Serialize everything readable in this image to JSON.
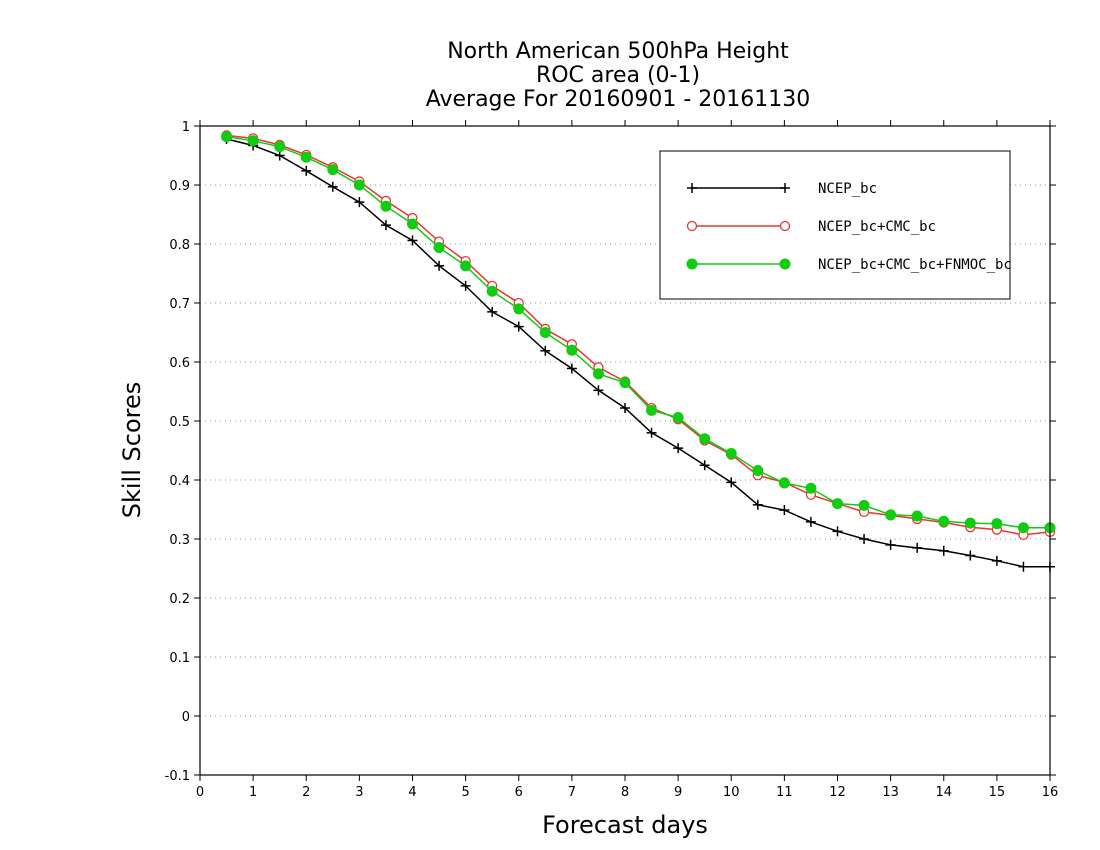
{
  "chart_data": {
    "type": "line",
    "title_lines": [
      "North American 500hPa Height",
      "ROC area (0-1)",
      "Average For 20160901 - 20161130"
    ],
    "xlabel": "Forecast days",
    "ylabel": "Skill Scores",
    "xlim": [
      0,
      16
    ],
    "ylim": [
      -0.1,
      1
    ],
    "xticks": [
      0,
      1,
      2,
      3,
      4,
      5,
      6,
      7,
      8,
      9,
      10,
      11,
      12,
      13,
      14,
      15,
      16
    ],
    "yticks": [
      -0.1,
      0,
      0.1,
      0.2,
      0.3,
      0.4,
      0.5,
      0.6,
      0.7,
      0.8,
      0.9,
      1
    ],
    "ytick_labels": [
      "-0.1",
      "0",
      "0.1",
      "0.2",
      "0.3",
      "0.4",
      "0.5",
      "0.6",
      "0.7",
      "0.8",
      "0.9",
      "1"
    ],
    "grid": "horizontal-dotted",
    "legend_position": "top-right",
    "x": [
      0.5,
      1,
      1.5,
      2,
      2.5,
      3,
      3.5,
      4,
      4.5,
      5,
      5.5,
      6,
      6.5,
      7,
      7.5,
      8,
      8.5,
      9,
      9.5,
      10,
      10.5,
      11,
      11.5,
      12,
      12.5,
      13,
      13.5,
      14,
      14.5,
      15,
      15.5,
      16
    ],
    "series": [
      {
        "name": "NCEP_bc",
        "color": "#000000",
        "marker": "plus",
        "values": [
          0.978,
          0.967,
          0.95,
          0.924,
          0.897,
          0.871,
          0.832,
          0.806,
          0.763,
          0.729,
          0.685,
          0.66,
          0.619,
          0.589,
          0.552,
          0.522,
          0.48,
          0.454,
          0.425,
          0.396,
          0.358,
          0.349,
          0.329,
          0.313,
          0.3,
          0.29,
          0.285,
          0.28,
          0.272,
          0.263,
          0.253,
          0.253
        ]
      },
      {
        "name": "NCEP_bc+CMC_bc",
        "color": "#ee3333",
        "marker": "open-circle",
        "values": [
          0.984,
          0.979,
          0.968,
          0.951,
          0.93,
          0.906,
          0.873,
          0.844,
          0.804,
          0.771,
          0.729,
          0.7,
          0.656,
          0.63,
          0.591,
          0.567,
          0.522,
          0.503,
          0.467,
          0.443,
          0.408,
          0.396,
          0.375,
          0.36,
          0.346,
          0.34,
          0.334,
          0.328,
          0.32,
          0.316,
          0.307,
          0.312
        ]
      },
      {
        "name": "NCEP_bc+CMC_bc+FNMOC_bc",
        "color": "#11cc11",
        "marker": "filled-circle",
        "values": [
          0.982,
          0.975,
          0.965,
          0.947,
          0.926,
          0.9,
          0.864,
          0.834,
          0.794,
          0.763,
          0.72,
          0.69,
          0.65,
          0.62,
          0.58,
          0.565,
          0.518,
          0.506,
          0.47,
          0.445,
          0.416,
          0.395,
          0.386,
          0.36,
          0.357,
          0.341,
          0.339,
          0.33,
          0.327,
          0.326,
          0.319,
          0.319
        ]
      }
    ]
  }
}
